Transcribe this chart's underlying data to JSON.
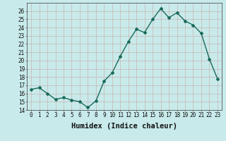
{
  "x": [
    0,
    1,
    2,
    3,
    4,
    5,
    6,
    7,
    8,
    9,
    10,
    11,
    12,
    13,
    14,
    15,
    16,
    17,
    18,
    19,
    20,
    21,
    22,
    23
  ],
  "y": [
    16.5,
    16.7,
    16.0,
    15.3,
    15.5,
    15.2,
    15.0,
    14.3,
    15.1,
    17.5,
    18.5,
    20.5,
    22.3,
    23.8,
    23.4,
    25.0,
    26.3,
    25.2,
    25.8,
    24.8,
    24.3,
    23.3,
    20.2,
    17.8
  ],
  "line_color": "#1a6b5a",
  "marker": "D",
  "marker_size": 2,
  "line_width": 1.0,
  "bg_color": "#c8eaea",
  "grid_color": "#c8b4b4",
  "xlabel": "Humidex (Indice chaleur)",
  "xlim": [
    -0.5,
    23.5
  ],
  "ylim": [
    14,
    27
  ],
  "yticks": [
    14,
    15,
    16,
    17,
    18,
    19,
    20,
    21,
    22,
    23,
    24,
    25,
    26
  ],
  "xticks": [
    0,
    1,
    2,
    3,
    4,
    5,
    6,
    7,
    8,
    9,
    10,
    11,
    12,
    13,
    14,
    15,
    16,
    17,
    18,
    19,
    20,
    21,
    22,
    23
  ],
  "tick_fontsize": 5.5,
  "label_fontsize": 7.5
}
